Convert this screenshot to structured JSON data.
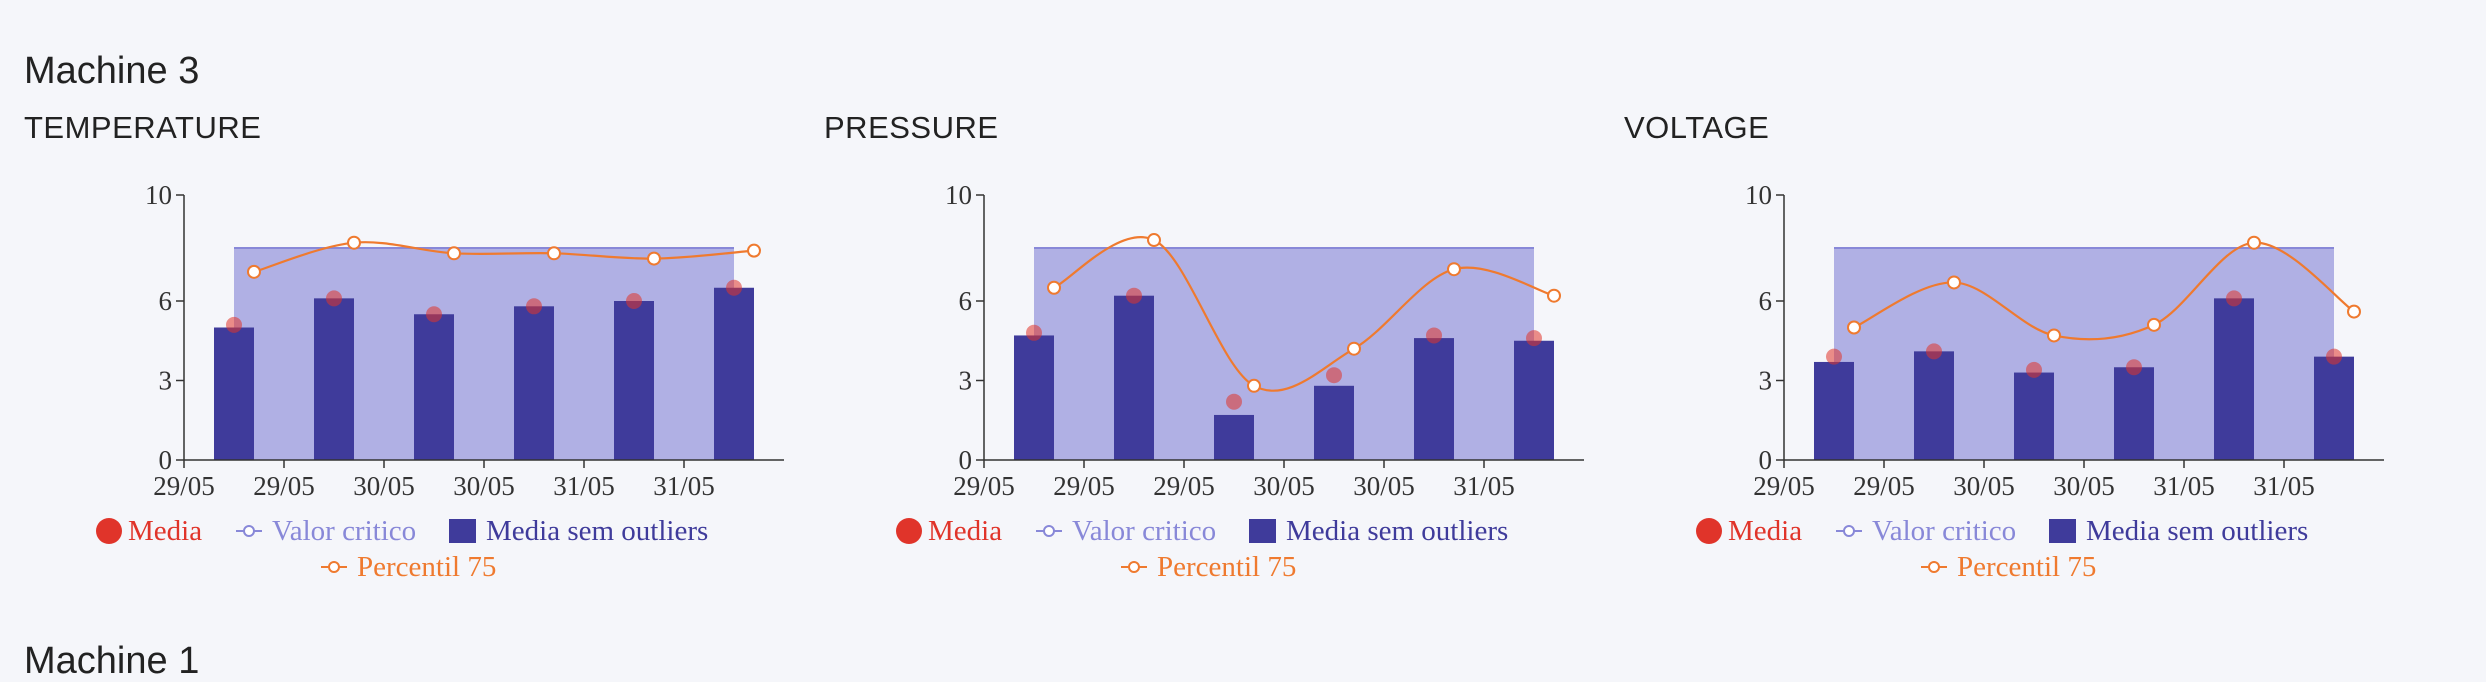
{
  "machines": [
    "Machine 3",
    "Machine 1"
  ],
  "colors": {
    "media": "#e0342a",
    "valor_critico": "#8888d8",
    "valor_critico_fill": "#b0b0e4",
    "media_sem_outliers": "#3f3b9b",
    "percentil_75": "#ef7a2f"
  },
  "legend": {
    "media": "Media",
    "valor_critico": "Valor critico",
    "media_sem_outliers": "Media sem outliers",
    "percentil_75": "Percentil 75"
  },
  "chart_data": [
    {
      "type": "bar",
      "title": "TEMPERATURE",
      "x_tick_labels": [
        "29/05",
        "29/05",
        "30/05",
        "30/05",
        "31/05",
        "31/05"
      ],
      "y_ticks": [
        0,
        3,
        6,
        10
      ],
      "ylim": [
        0,
        10
      ],
      "series": [
        {
          "name": "Media sem outliers",
          "type": "bar",
          "values": [
            5.0,
            6.1,
            5.5,
            5.8,
            6.0,
            6.5
          ]
        },
        {
          "name": "Media",
          "type": "scatter",
          "values": [
            5.1,
            6.1,
            5.5,
            5.8,
            6.0,
            6.5
          ]
        },
        {
          "name": "Valor critico",
          "type": "area",
          "values": [
            8.0,
            8.0,
            8.0,
            8.0,
            8.0,
            8.0
          ]
        },
        {
          "name": "Percentil 75",
          "type": "line",
          "values": [
            7.1,
            8.2,
            7.8,
            7.8,
            7.6,
            7.9
          ]
        }
      ]
    },
    {
      "type": "bar",
      "title": "PRESSURE",
      "x_tick_labels": [
        "29/05",
        "29/05",
        "29/05",
        "30/05",
        "30/05",
        "31/05"
      ],
      "y_ticks": [
        0,
        3,
        6,
        10
      ],
      "ylim": [
        0,
        10
      ],
      "series": [
        {
          "name": "Media sem outliers",
          "type": "bar",
          "values": [
            4.7,
            6.2,
            1.7,
            2.8,
            4.6,
            4.5
          ]
        },
        {
          "name": "Media",
          "type": "scatter",
          "values": [
            4.8,
            6.2,
            2.2,
            3.2,
            4.7,
            4.6
          ]
        },
        {
          "name": "Valor critico",
          "type": "area",
          "values": [
            8.0,
            8.0,
            8.0,
            8.0,
            8.0,
            8.0
          ]
        },
        {
          "name": "Percentil 75",
          "type": "line",
          "values": [
            6.5,
            8.3,
            2.8,
            4.2,
            7.2,
            6.2
          ]
        }
      ]
    },
    {
      "type": "bar",
      "title": "VOLTAGE",
      "x_tick_labels": [
        "29/05",
        "29/05",
        "30/05",
        "30/05",
        "31/05",
        "31/05"
      ],
      "y_ticks": [
        0,
        3,
        6,
        10
      ],
      "ylim": [
        0,
        10
      ],
      "series": [
        {
          "name": "Media sem outliers",
          "type": "bar",
          "values": [
            3.7,
            4.1,
            3.3,
            3.5,
            6.1,
            3.9
          ]
        },
        {
          "name": "Media",
          "type": "scatter",
          "values": [
            3.9,
            4.1,
            3.4,
            3.5,
            6.1,
            3.9
          ]
        },
        {
          "name": "Valor critico",
          "type": "area",
          "values": [
            8.0,
            8.0,
            8.0,
            8.0,
            8.0,
            8.0
          ]
        },
        {
          "name": "Percentil 75",
          "type": "line",
          "values": [
            5.0,
            6.7,
            4.7,
            5.1,
            8.2,
            5.6
          ]
        }
      ]
    }
  ]
}
